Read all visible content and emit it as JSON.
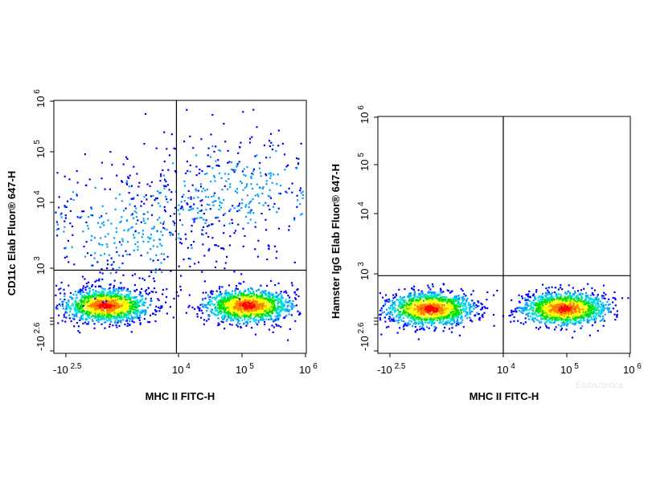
{
  "chart_data": [
    {
      "type": "scatter",
      "subtype": "flow-cytometry-density",
      "xlabel": "MHC II FITC-H",
      "ylabel": "CD11c Elab Fluor® 647-H",
      "scale": "biexponential",
      "x_ticks": [
        {
          "base": "-10",
          "exp": "2.5"
        },
        {
          "base": "10",
          "exp": "4"
        },
        {
          "base": "10",
          "exp": "5"
        },
        {
          "base": "10",
          "exp": "6"
        }
      ],
      "y_ticks": [
        {
          "base": "-10",
          "exp": "2.6"
        },
        {
          "base": "10",
          "exp": "3"
        },
        {
          "base": "10",
          "exp": "4"
        },
        {
          "base": "10",
          "exp": "5"
        },
        {
          "base": "10",
          "exp": "6"
        }
      ],
      "quadrant_gate": {
        "x": 9000,
        "y": 900
      },
      "populations": [
        {
          "name": "",
          "x_center": 120,
          "y_center": 120,
          "density": "high"
        },
        {
          "name": "",
          "x_center": 120000,
          "y_center": 120,
          "density": "high"
        },
        {
          "name": "",
          "x_center": 500,
          "y_center": 4000,
          "density": "low"
        },
        {
          "name": "",
          "x_center": 80000,
          "y_center": 15000,
          "density": "low"
        }
      ],
      "grid": false,
      "legend": "none"
    },
    {
      "type": "scatter",
      "subtype": "flow-cytometry-density",
      "xlabel": "MHC II FITC-H",
      "ylabel": "Hamster IgG Elab Fluor® 647-H",
      "scale": "biexponential",
      "x_ticks": [
        {
          "base": "-10",
          "exp": "2.5"
        },
        {
          "base": "10",
          "exp": "4"
        },
        {
          "base": "10",
          "exp": "5"
        },
        {
          "base": "10",
          "exp": "6"
        }
      ],
      "y_ticks": [
        {
          "base": "-10",
          "exp": "2.6"
        },
        {
          "base": "10",
          "exp": "3"
        },
        {
          "base": "10",
          "exp": "4"
        },
        {
          "base": "10",
          "exp": "5"
        },
        {
          "base": "10",
          "exp": "6"
        }
      ],
      "quadrant_gate": {
        "x": 10000,
        "y": 900
      },
      "populations": [
        {
          "name": "",
          "x_center": 120,
          "y_center": 120,
          "density": "high"
        },
        {
          "name": "",
          "x_center": 90000,
          "y_center": 120,
          "density": "high"
        }
      ],
      "grid": false,
      "legend": "none"
    }
  ],
  "watermark": "Elabscience",
  "colors": {
    "density_scale": [
      "#0000ff",
      "#00a0ff",
      "#00e0e0",
      "#00e000",
      "#ffff00",
      "#ff8000",
      "#ff0000"
    ],
    "gate_line": "#000000"
  }
}
